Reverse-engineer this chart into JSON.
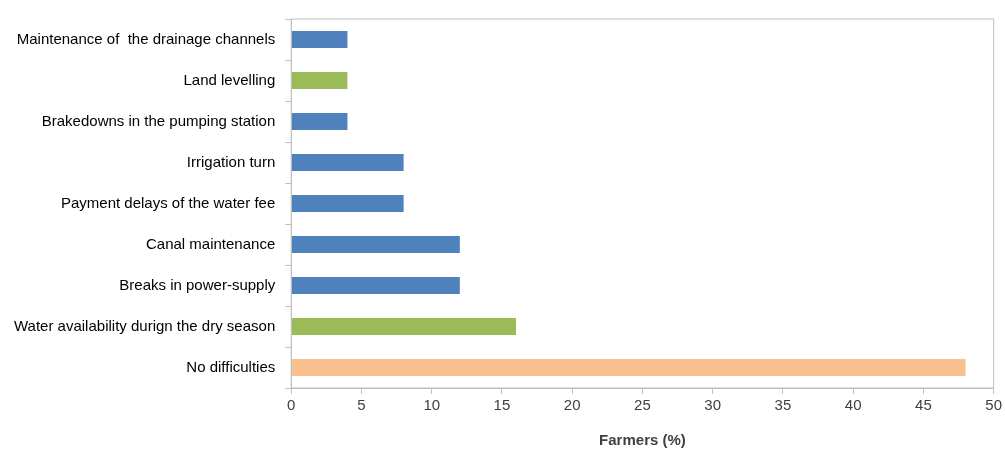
{
  "chart_data": {
    "type": "bar",
    "orientation": "horizontal",
    "xlabel": "Farmers (%)",
    "categories": [
      "Maintenance of  the drainage channels",
      "Land levelling",
      "Brakedowns in the pumping station",
      "Irrigation turn",
      "Payment delays of the water fee",
      "Canal maintenance",
      "Breaks in power-supply",
      "Water availability durign the dry season",
      "No difficulties"
    ],
    "values": [
      4,
      4,
      4,
      8,
      8,
      12,
      12,
      16,
      48
    ],
    "colors": [
      "#4f81bd",
      "#9bbb59",
      "#4f81bd",
      "#4f81bd",
      "#4f81bd",
      "#4f81bd",
      "#4f81bd",
      "#9bbb59",
      "#fac090"
    ],
    "xlim": [
      0,
      50
    ],
    "xticks": [
      0,
      5,
      10,
      15,
      20,
      25,
      30,
      35,
      40,
      45,
      50
    ],
    "grid": false,
    "legend": false
  }
}
